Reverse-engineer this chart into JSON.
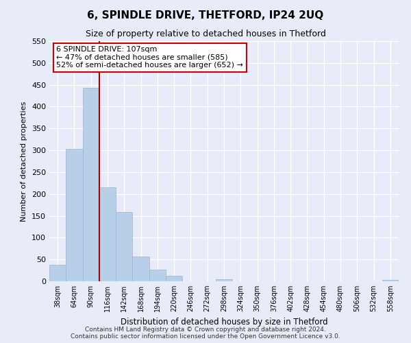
{
  "title": "6, SPINDLE DRIVE, THETFORD, IP24 2UQ",
  "subtitle": "Size of property relative to detached houses in Thetford",
  "xlabel": "Distribution of detached houses by size in Thetford",
  "ylabel": "Number of detached properties",
  "bar_labels": [
    "38sqm",
    "64sqm",
    "90sqm",
    "116sqm",
    "142sqm",
    "168sqm",
    "194sqm",
    "220sqm",
    "246sqm",
    "272sqm",
    "298sqm",
    "324sqm",
    "350sqm",
    "376sqm",
    "402sqm",
    "428sqm",
    "454sqm",
    "480sqm",
    "506sqm",
    "532sqm",
    "558sqm"
  ],
  "bar_values": [
    37,
    303,
    443,
    215,
    158,
    57,
    26,
    12,
    0,
    0,
    5,
    0,
    0,
    0,
    0,
    0,
    0,
    0,
    0,
    0,
    3
  ],
  "bar_color": "#b8cfe8",
  "bar_edge_color": "#9ab5d8",
  "subject_line_color": "#aa0000",
  "subject_line_index": 2.5,
  "ylim": [
    0,
    550
  ],
  "yticks": [
    0,
    50,
    100,
    150,
    200,
    250,
    300,
    350,
    400,
    450,
    500,
    550
  ],
  "annotation_title": "6 SPINDLE DRIVE: 107sqm",
  "annotation_line1": "← 47% of detached houses are smaller (585)",
  "annotation_line2": "52% of semi-detached houses are larger (652) →",
  "annotation_box_color": "#ffffff",
  "annotation_box_edge": "#cc0000",
  "footer_line1": "Contains HM Land Registry data © Crown copyright and database right 2024.",
  "footer_line2": "Contains public sector information licensed under the Open Government Licence v3.0.",
  "bg_color": "#e8ecf8",
  "plot_bg_color": "#e8ecf8",
  "grid_color": "#ffffff",
  "title_fontsize": 11,
  "subtitle_fontsize": 9,
  "xlabel_fontsize": 8.5,
  "ylabel_fontsize": 8,
  "tick_fontsize": 8,
  "xtick_fontsize": 7,
  "ann_fontsize": 8,
  "footer_fontsize": 6.5
}
